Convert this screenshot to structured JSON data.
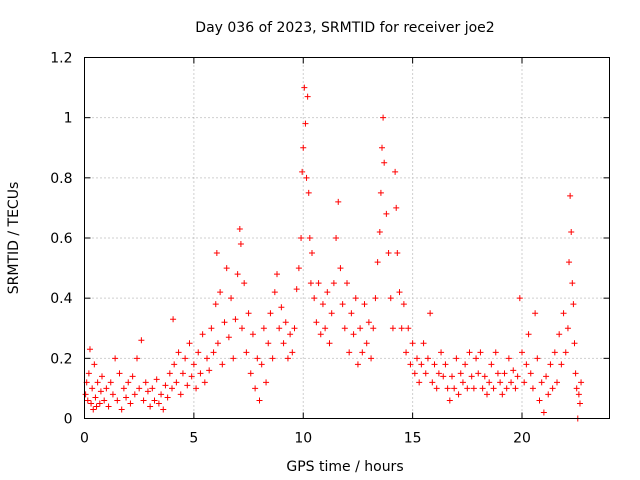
{
  "chart_data": {
    "type": "scatter",
    "title": "Day 036 of 2023, SRMTID for receiver joe2",
    "xlabel": "GPS time / hours",
    "ylabel": "SRMTID / TECUs",
    "xlim": [
      0,
      24
    ],
    "ylim": [
      0,
      1.2
    ],
    "xticks": [
      0,
      5,
      10,
      15,
      20
    ],
    "xtick_labels": [
      "0",
      "5",
      "10",
      "15",
      "20"
    ],
    "yticks": [
      0,
      0.2,
      0.4,
      0.6,
      0.8,
      1.0,
      1.2
    ],
    "ytick_labels": [
      "0",
      "0.2",
      "0.4",
      "0.6",
      "0.8",
      "1",
      "1.2"
    ],
    "grid": true,
    "marker": "+",
    "series": [
      {
        "name": "SRMTID",
        "color": "#ff0000",
        "points": [
          [
            0.05,
            0.08
          ],
          [
            0.1,
            0.12
          ],
          [
            0.15,
            0.06
          ],
          [
            0.2,
            0.15
          ],
          [
            0.25,
            0.23
          ],
          [
            0.3,
            0.05
          ],
          [
            0.35,
            0.1
          ],
          [
            0.4,
            0.03
          ],
          [
            0.45,
            0.18
          ],
          [
            0.5,
            0.07
          ],
          [
            0.55,
            0.04
          ],
          [
            0.6,
            0.12
          ],
          [
            0.7,
            0.05
          ],
          [
            0.75,
            0.09
          ],
          [
            0.8,
            0.14
          ],
          [
            0.9,
            0.06
          ],
          [
            1.0,
            0.1
          ],
          [
            1.1,
            0.04
          ],
          [
            1.2,
            0.12
          ],
          [
            1.3,
            0.08
          ],
          [
            1.4,
            0.2
          ],
          [
            1.5,
            0.06
          ],
          [
            1.6,
            0.15
          ],
          [
            1.7,
            0.03
          ],
          [
            1.8,
            0.1
          ],
          [
            1.9,
            0.07
          ],
          [
            2.0,
            0.12
          ],
          [
            2.1,
            0.05
          ],
          [
            2.2,
            0.14
          ],
          [
            2.3,
            0.08
          ],
          [
            2.4,
            0.2
          ],
          [
            2.5,
            0.1
          ],
          [
            2.6,
            0.26
          ],
          [
            2.7,
            0.06
          ],
          [
            2.8,
            0.12
          ],
          [
            2.9,
            0.09
          ],
          [
            3.0,
            0.04
          ],
          [
            3.1,
            0.1
          ],
          [
            3.2,
            0.06
          ],
          [
            3.3,
            0.13
          ],
          [
            3.4,
            0.05
          ],
          [
            3.5,
            0.08
          ],
          [
            3.6,
            0.03
          ],
          [
            3.7,
            0.11
          ],
          [
            3.8,
            0.07
          ],
          [
            3.9,
            0.15
          ],
          [
            4.0,
            0.1
          ],
          [
            4.05,
            0.33
          ],
          [
            4.1,
            0.18
          ],
          [
            4.2,
            0.12
          ],
          [
            4.3,
            0.22
          ],
          [
            4.4,
            0.08
          ],
          [
            4.5,
            0.15
          ],
          [
            4.6,
            0.2
          ],
          [
            4.7,
            0.11
          ],
          [
            4.8,
            0.25
          ],
          [
            4.9,
            0.14
          ],
          [
            5.0,
            0.18
          ],
          [
            5.1,
            0.1
          ],
          [
            5.2,
            0.22
          ],
          [
            5.3,
            0.15
          ],
          [
            5.4,
            0.28
          ],
          [
            5.5,
            0.12
          ],
          [
            5.6,
            0.2
          ],
          [
            5.7,
            0.16
          ],
          [
            5.8,
            0.3
          ],
          [
            5.9,
            0.22
          ],
          [
            6.0,
            0.38
          ],
          [
            6.05,
            0.55
          ],
          [
            6.1,
            0.25
          ],
          [
            6.2,
            0.42
          ],
          [
            6.3,
            0.18
          ],
          [
            6.4,
            0.32
          ],
          [
            6.5,
            0.5
          ],
          [
            6.6,
            0.27
          ],
          [
            6.7,
            0.4
          ],
          [
            6.8,
            0.2
          ],
          [
            6.9,
            0.33
          ],
          [
            7.0,
            0.48
          ],
          [
            7.1,
            0.63
          ],
          [
            7.15,
            0.58
          ],
          [
            7.2,
            0.3
          ],
          [
            7.3,
            0.45
          ],
          [
            7.4,
            0.22
          ],
          [
            7.5,
            0.35
          ],
          [
            7.6,
            0.15
          ],
          [
            7.7,
            0.28
          ],
          [
            7.8,
            0.1
          ],
          [
            7.9,
            0.2
          ],
          [
            8.0,
            0.06
          ],
          [
            8.1,
            0.18
          ],
          [
            8.2,
            0.3
          ],
          [
            8.3,
            0.12
          ],
          [
            8.4,
            0.25
          ],
          [
            8.5,
            0.35
          ],
          [
            8.6,
            0.2
          ],
          [
            8.7,
            0.42
          ],
          [
            8.8,
            0.48
          ],
          [
            8.9,
            0.3
          ],
          [
            9.0,
            0.37
          ],
          [
            9.1,
            0.25
          ],
          [
            9.2,
            0.32
          ],
          [
            9.3,
            0.2
          ],
          [
            9.4,
            0.28
          ],
          [
            9.5,
            0.22
          ],
          [
            9.6,
            0.3
          ],
          [
            9.7,
            0.43
          ],
          [
            9.8,
            0.5
          ],
          [
            9.9,
            0.6
          ],
          [
            9.95,
            0.82
          ],
          [
            10.0,
            0.9
          ],
          [
            10.05,
            1.1
          ],
          [
            10.1,
            0.98
          ],
          [
            10.15,
            0.8
          ],
          [
            10.2,
            1.07
          ],
          [
            10.25,
            0.75
          ],
          [
            10.3,
            0.6
          ],
          [
            10.35,
            0.45
          ],
          [
            10.4,
            0.55
          ],
          [
            10.5,
            0.4
          ],
          [
            10.6,
            0.32
          ],
          [
            10.7,
            0.45
          ],
          [
            10.8,
            0.28
          ],
          [
            10.9,
            0.38
          ],
          [
            11.0,
            0.3
          ],
          [
            11.1,
            0.42
          ],
          [
            11.2,
            0.25
          ],
          [
            11.3,
            0.35
          ],
          [
            11.4,
            0.45
          ],
          [
            11.5,
            0.6
          ],
          [
            11.6,
            0.72
          ],
          [
            11.7,
            0.5
          ],
          [
            11.8,
            0.38
          ],
          [
            11.9,
            0.3
          ],
          [
            12.0,
            0.45
          ],
          [
            12.1,
            0.22
          ],
          [
            12.2,
            0.35
          ],
          [
            12.3,
            0.28
          ],
          [
            12.4,
            0.4
          ],
          [
            12.5,
            0.18
          ],
          [
            12.6,
            0.3
          ],
          [
            12.7,
            0.22
          ],
          [
            12.8,
            0.38
          ],
          [
            12.9,
            0.25
          ],
          [
            13.0,
            0.32
          ],
          [
            13.1,
            0.2
          ],
          [
            13.2,
            0.3
          ],
          [
            13.3,
            0.4
          ],
          [
            13.4,
            0.52
          ],
          [
            13.5,
            0.62
          ],
          [
            13.55,
            0.75
          ],
          [
            13.6,
            0.9
          ],
          [
            13.65,
            1.0
          ],
          [
            13.7,
            0.85
          ],
          [
            13.8,
            0.68
          ],
          [
            13.9,
            0.55
          ],
          [
            14.0,
            0.4
          ],
          [
            14.1,
            0.3
          ],
          [
            14.2,
            0.82
          ],
          [
            14.25,
            0.7
          ],
          [
            14.3,
            0.55
          ],
          [
            14.4,
            0.42
          ],
          [
            14.5,
            0.3
          ],
          [
            14.6,
            0.38
          ],
          [
            14.7,
            0.22
          ],
          [
            14.8,
            0.3
          ],
          [
            14.9,
            0.18
          ],
          [
            15.0,
            0.25
          ],
          [
            15.1,
            0.15
          ],
          [
            15.2,
            0.2
          ],
          [
            15.3,
            0.12
          ],
          [
            15.4,
            0.18
          ],
          [
            15.5,
            0.25
          ],
          [
            15.6,
            0.15
          ],
          [
            15.7,
            0.2
          ],
          [
            15.8,
            0.35
          ],
          [
            15.9,
            0.12
          ],
          [
            16.0,
            0.18
          ],
          [
            16.1,
            0.1
          ],
          [
            16.2,
            0.15
          ],
          [
            16.3,
            0.22
          ],
          [
            16.4,
            0.14
          ],
          [
            16.5,
            0.18
          ],
          [
            16.6,
            0.1
          ],
          [
            16.7,
            0.06
          ],
          [
            16.8,
            0.14
          ],
          [
            16.9,
            0.1
          ],
          [
            17.0,
            0.2
          ],
          [
            17.1,
            0.08
          ],
          [
            17.2,
            0.15
          ],
          [
            17.3,
            0.12
          ],
          [
            17.4,
            0.18
          ],
          [
            17.5,
            0.1
          ],
          [
            17.6,
            0.22
          ],
          [
            17.7,
            0.14
          ],
          [
            17.8,
            0.1
          ],
          [
            17.9,
            0.2
          ],
          [
            18.0,
            0.15
          ],
          [
            18.1,
            0.22
          ],
          [
            18.2,
            0.1
          ],
          [
            18.3,
            0.14
          ],
          [
            18.4,
            0.08
          ],
          [
            18.5,
            0.12
          ],
          [
            18.6,
            0.18
          ],
          [
            18.7,
            0.1
          ],
          [
            18.8,
            0.22
          ],
          [
            18.9,
            0.15
          ],
          [
            19.0,
            0.12
          ],
          [
            19.1,
            0.08
          ],
          [
            19.2,
            0.15
          ],
          [
            19.3,
            0.1
          ],
          [
            19.4,
            0.2
          ],
          [
            19.5,
            0.12
          ],
          [
            19.6,
            0.16
          ],
          [
            19.7,
            0.1
          ],
          [
            19.8,
            0.14
          ],
          [
            19.9,
            0.4
          ],
          [
            20.0,
            0.22
          ],
          [
            20.1,
            0.12
          ],
          [
            20.2,
            0.18
          ],
          [
            20.3,
            0.28
          ],
          [
            20.4,
            0.15
          ],
          [
            20.5,
            0.1
          ],
          [
            20.6,
            0.35
          ],
          [
            20.7,
            0.2
          ],
          [
            20.8,
            0.06
          ],
          [
            20.9,
            0.12
          ],
          [
            21.0,
            0.02
          ],
          [
            21.1,
            0.14
          ],
          [
            21.2,
            0.08
          ],
          [
            21.3,
            0.18
          ],
          [
            21.4,
            0.1
          ],
          [
            21.5,
            0.22
          ],
          [
            21.6,
            0.12
          ],
          [
            21.7,
            0.28
          ],
          [
            21.8,
            0.18
          ],
          [
            21.9,
            0.35
          ],
          [
            22.0,
            0.22
          ],
          [
            22.1,
            0.3
          ],
          [
            22.15,
            0.52
          ],
          [
            22.2,
            0.74
          ],
          [
            22.25,
            0.62
          ],
          [
            22.3,
            0.45
          ],
          [
            22.35,
            0.38
          ],
          [
            22.4,
            0.25
          ],
          [
            22.45,
            0.15
          ],
          [
            22.5,
            0.1
          ],
          [
            22.55,
            0.0
          ],
          [
            22.6,
            0.08
          ],
          [
            22.65,
            0.05
          ],
          [
            22.7,
            0.12
          ]
        ]
      }
    ]
  }
}
